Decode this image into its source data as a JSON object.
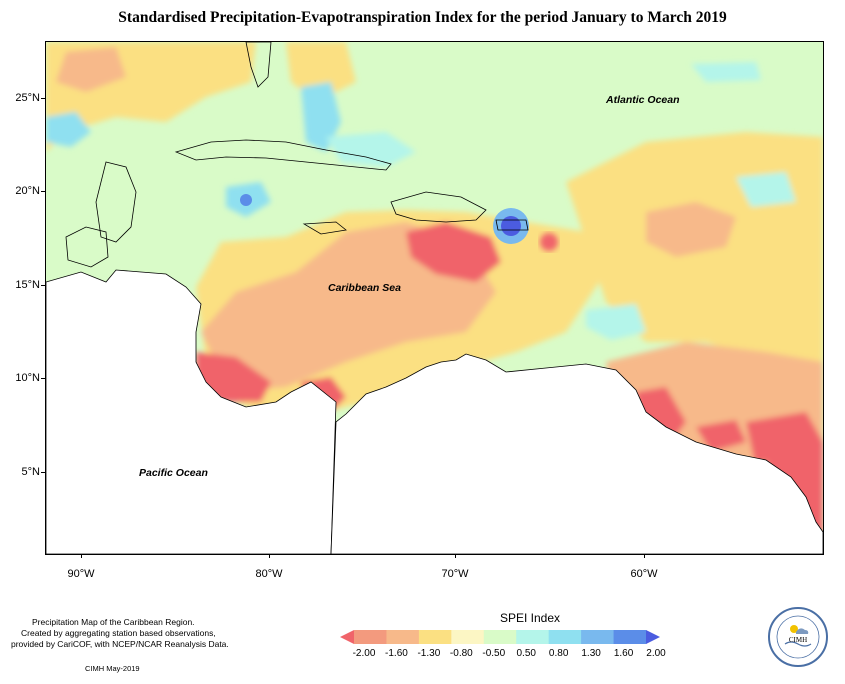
{
  "title": "Standardised Precipitation-Evapotranspiration Index for the period January to March 2019",
  "map": {
    "ocean_labels": {
      "atlantic": "Atlantic Ocean",
      "caribbean": "Caribbean Sea",
      "pacific": "Pacific Ocean"
    },
    "latitude_labels": [
      "25°N",
      "20°N",
      "15°N",
      "10°N",
      "5°N"
    ],
    "longitude_labels": [
      "90°W",
      "80°W",
      "70°W",
      "60°W"
    ]
  },
  "credits": {
    "line1": "Precipitation Map of the Caribbean Region.",
    "line2": "Created by aggregating station based observations,",
    "line3": "provided by CariCOF, with NCEP/NCAR Reanalysis Data.",
    "date": "CIMH May-2019"
  },
  "legend": {
    "title": "SPEI Index",
    "values": [
      "-2.00",
      "-1.60",
      "-1.30",
      "-0.80",
      "-0.50",
      "0.50",
      "0.80",
      "1.30",
      "1.60",
      "2.00"
    ],
    "colors": [
      "#f0646a",
      "#f39a7e",
      "#f7b98a",
      "#fbe082",
      "#fcf6c4",
      "#d9fbc8",
      "#b4f5ea",
      "#8fe0f0",
      "#79b9ee",
      "#5b8de8",
      "#4b5ce0"
    ]
  },
  "logo": {
    "name": "CIMH",
    "ring_text": "Caribbean Institute for Meteorology and Hydrology"
  },
  "colors": {
    "very_dry": "#f0646a",
    "dry": "#f7b98a",
    "slightly_dry": "#fbe082",
    "normal": "#d9fbc8",
    "wet": "#8fe0f0",
    "very_wet": "#4b5ce0"
  }
}
